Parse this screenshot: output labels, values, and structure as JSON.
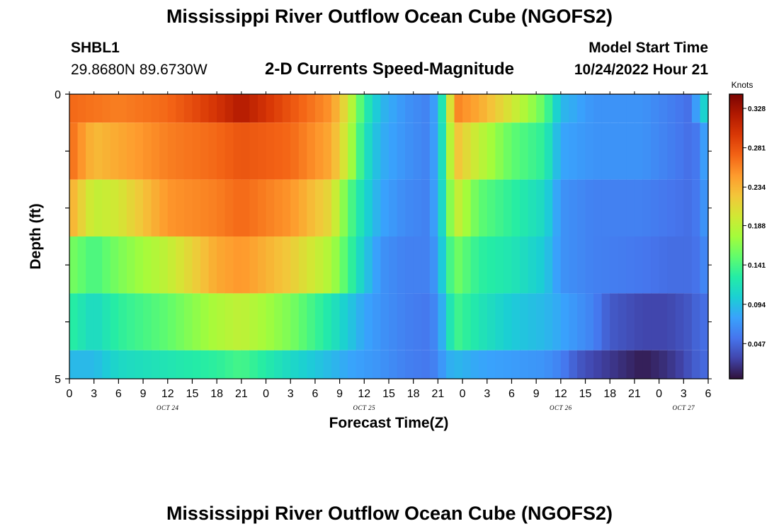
{
  "header": {
    "title": "Mississippi River Outflow Ocean Cube (NGOFS2)",
    "station_id": "SHBL1",
    "station_coords": "29.8680N  89.6730W",
    "variable": "2-D Currents Speed-Magnitude",
    "model_start_label": "Model Start Time",
    "model_start_value": "10/24/2022 Hour 21"
  },
  "footer": {
    "title_repeat": "Mississippi River Outflow Ocean Cube (NGOFS2)"
  },
  "colors": {
    "palette": [
      "#30123b",
      "#4145ab",
      "#4675ed",
      "#39a2fc",
      "#1bcfd4",
      "#24eca6",
      "#61fc6c",
      "#a4fc3b",
      "#d1e834",
      "#f3c63a",
      "#fe9b2d",
      "#f36315",
      "#d93806",
      "#b11901",
      "#7a0402"
    ]
  },
  "chart_data": {
    "type": "heatmap",
    "xlabel": "Forecast Time(Z)",
    "ylabel": "Depth (ft)",
    "x_tick_labels": [
      "0",
      "3",
      "6",
      "9",
      "12",
      "15",
      "18",
      "21",
      "0",
      "3",
      "6",
      "9",
      "12",
      "15",
      "18",
      "21",
      "0",
      "3",
      "6",
      "9",
      "12",
      "15",
      "18",
      "21",
      "0",
      "3",
      "6"
    ],
    "date_labels": [
      {
        "label": "OCT 24",
        "hour": 12
      },
      {
        "label": "OCT 25",
        "hour": 36
      },
      {
        "label": "OCT 26",
        "hour": 60
      },
      {
        "label": "OCT 27",
        "hour": 75
      }
    ],
    "x_range": [
      0,
      78
    ],
    "y_tick_labels": [
      "0",
      "5"
    ],
    "y_range": [
      0,
      5
    ],
    "depth_bands": [
      0,
      0.5,
      1.5,
      2.5,
      3.5,
      4.5,
      5
    ],
    "colorbar": {
      "unit": "Knots",
      "tick_labels": [
        "0.328",
        "0.281",
        "0.234",
        "0.188",
        "0.141",
        "0.094",
        "0.047"
      ],
      "range": [
        0.005,
        0.345
      ]
    },
    "profiles": [
      {
        "layer": 1,
        "points": [
          [
            0,
            0.27
          ],
          [
            6,
            0.26
          ],
          [
            12,
            0.27
          ],
          [
            18,
            0.3
          ],
          [
            21,
            0.32
          ],
          [
            27,
            0.28
          ],
          [
            32,
            0.25
          ],
          [
            34,
            0.2
          ],
          [
            36,
            0.13
          ],
          [
            38,
            0.09
          ],
          [
            41,
            0.07
          ],
          [
            44,
            0.06
          ],
          [
            45,
            0.09
          ],
          [
            46,
            0.15
          ],
          [
            47,
            0.26
          ],
          [
            50,
            0.24
          ],
          [
            54,
            0.2
          ],
          [
            58,
            0.15
          ],
          [
            60,
            0.09
          ],
          [
            64,
            0.07
          ],
          [
            70,
            0.07
          ],
          [
            73,
            0.06
          ],
          [
            76,
            0.05
          ],
          [
            77,
            0.1
          ],
          [
            78,
            0.11
          ]
        ]
      },
      {
        "layer": 2,
        "points": [
          [
            0,
            0.27
          ],
          [
            3,
            0.23
          ],
          [
            6,
            0.24
          ],
          [
            12,
            0.26
          ],
          [
            18,
            0.27
          ],
          [
            21,
            0.28
          ],
          [
            27,
            0.27
          ],
          [
            32,
            0.24
          ],
          [
            34,
            0.19
          ],
          [
            36,
            0.12
          ],
          [
            38,
            0.085
          ],
          [
            41,
            0.07
          ],
          [
            44,
            0.06
          ],
          [
            45,
            0.09
          ],
          [
            46,
            0.14
          ],
          [
            47,
            0.23
          ],
          [
            50,
            0.19
          ],
          [
            54,
            0.15
          ],
          [
            58,
            0.13
          ],
          [
            60,
            0.08
          ],
          [
            64,
            0.07
          ],
          [
            70,
            0.07
          ],
          [
            73,
            0.06
          ],
          [
            76,
            0.05
          ],
          [
            77,
            0.06
          ],
          [
            78,
            0.09
          ]
        ]
      },
      {
        "layer": 3,
        "points": [
          [
            0,
            0.24
          ],
          [
            3,
            0.19
          ],
          [
            6,
            0.2
          ],
          [
            12,
            0.25
          ],
          [
            18,
            0.26
          ],
          [
            21,
            0.27
          ],
          [
            27,
            0.25
          ],
          [
            32,
            0.21
          ],
          [
            34,
            0.15
          ],
          [
            36,
            0.11
          ],
          [
            38,
            0.08
          ],
          [
            41,
            0.065
          ],
          [
            44,
            0.06
          ],
          [
            45,
            0.09
          ],
          [
            46,
            0.13
          ],
          [
            47,
            0.2
          ],
          [
            50,
            0.15
          ],
          [
            54,
            0.13
          ],
          [
            58,
            0.11
          ],
          [
            60,
            0.07
          ],
          [
            64,
            0.06
          ],
          [
            70,
            0.06
          ],
          [
            73,
            0.055
          ],
          [
            76,
            0.05
          ],
          [
            77,
            0.06
          ],
          [
            78,
            0.08
          ]
        ]
      },
      {
        "layer": 4,
        "points": [
          [
            0,
            0.16
          ],
          [
            3,
            0.14
          ],
          [
            6,
            0.16
          ],
          [
            12,
            0.19
          ],
          [
            18,
            0.24
          ],
          [
            21,
            0.25
          ],
          [
            27,
            0.22
          ],
          [
            32,
            0.18
          ],
          [
            34,
            0.14
          ],
          [
            36,
            0.1
          ],
          [
            38,
            0.07
          ],
          [
            41,
            0.06
          ],
          [
            44,
            0.06
          ],
          [
            45,
            0.08
          ],
          [
            46,
            0.12
          ],
          [
            47,
            0.16
          ],
          [
            50,
            0.13
          ],
          [
            54,
            0.12
          ],
          [
            58,
            0.1
          ],
          [
            60,
            0.07
          ],
          [
            64,
            0.06
          ],
          [
            70,
            0.055
          ],
          [
            73,
            0.05
          ],
          [
            76,
            0.05
          ],
          [
            77,
            0.055
          ],
          [
            78,
            0.07
          ]
        ]
      },
      {
        "layer": 5,
        "points": [
          [
            0,
            0.13
          ],
          [
            3,
            0.11
          ],
          [
            6,
            0.13
          ],
          [
            12,
            0.15
          ],
          [
            18,
            0.18
          ],
          [
            21,
            0.19
          ],
          [
            27,
            0.16
          ],
          [
            32,
            0.12
          ],
          [
            34,
            0.1
          ],
          [
            36,
            0.08
          ],
          [
            38,
            0.07
          ],
          [
            41,
            0.06
          ],
          [
            44,
            0.055
          ],
          [
            45,
            0.07
          ],
          [
            46,
            0.1
          ],
          [
            47,
            0.14
          ],
          [
            50,
            0.12
          ],
          [
            54,
            0.1
          ],
          [
            58,
            0.09
          ],
          [
            60,
            0.08
          ],
          [
            64,
            0.06
          ],
          [
            66,
            0.04
          ],
          [
            70,
            0.03
          ],
          [
            73,
            0.03
          ],
          [
            76,
            0.04
          ],
          [
            77,
            0.05
          ],
          [
            78,
            0.05
          ]
        ]
      },
      {
        "layer": 6,
        "points": [
          [
            0,
            0.09
          ],
          [
            3,
            0.09
          ],
          [
            6,
            0.11
          ],
          [
            12,
            0.12
          ],
          [
            18,
            0.13
          ],
          [
            21,
            0.14
          ],
          [
            27,
            0.11
          ],
          [
            32,
            0.09
          ],
          [
            34,
            0.08
          ],
          [
            36,
            0.075
          ],
          [
            38,
            0.07
          ],
          [
            41,
            0.06
          ],
          [
            44,
            0.055
          ],
          [
            45,
            0.065
          ],
          [
            46,
            0.08
          ],
          [
            47,
            0.09
          ],
          [
            50,
            0.08
          ],
          [
            54,
            0.075
          ],
          [
            58,
            0.07
          ],
          [
            60,
            0.06
          ],
          [
            62,
            0.04
          ],
          [
            64,
            0.03
          ],
          [
            67,
            0.02
          ],
          [
            70,
            0.01
          ],
          [
            73,
            0.02
          ],
          [
            75,
            0.03
          ],
          [
            76,
            0.04
          ],
          [
            78,
            0.05
          ]
        ]
      }
    ]
  }
}
